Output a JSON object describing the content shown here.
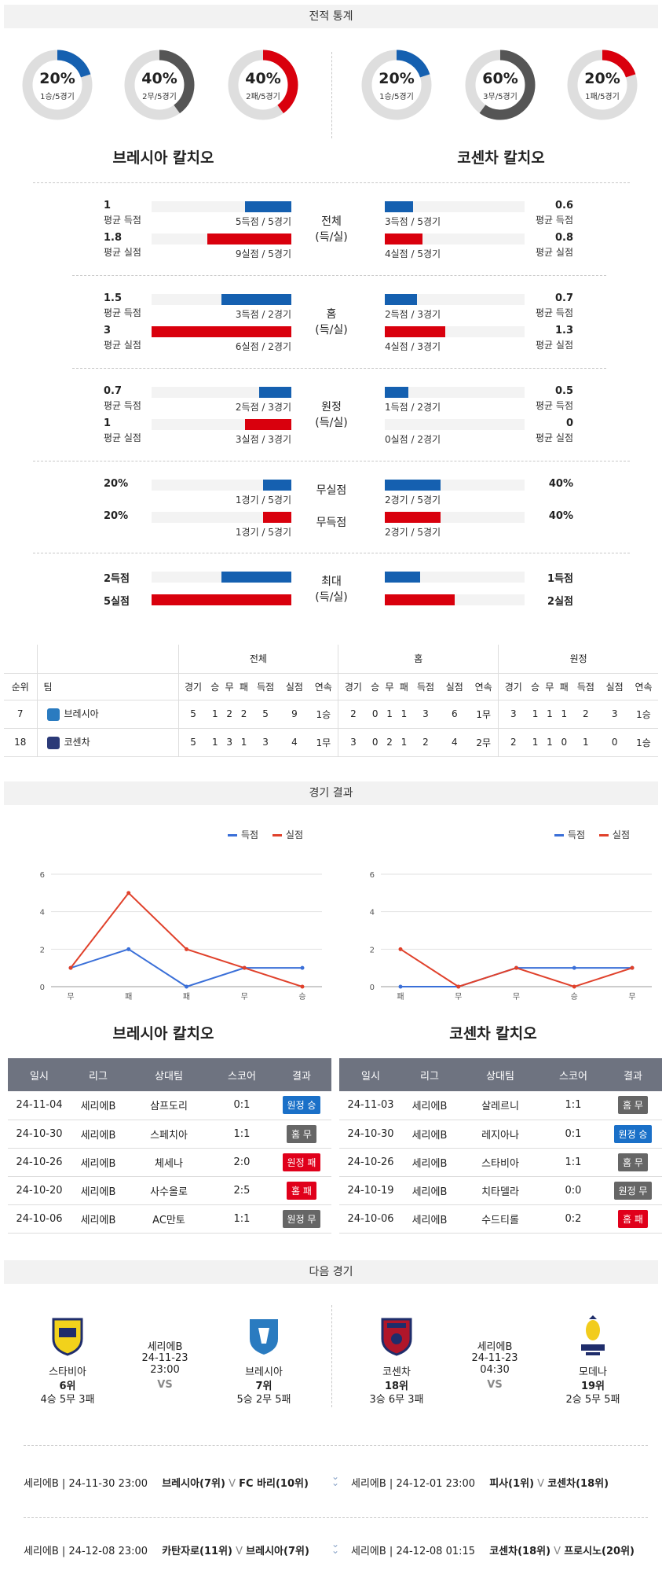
{
  "sections": {
    "stats": "전적 통계",
    "results": "경기 결과",
    "next": "다음 경기"
  },
  "donuts": [
    {
      "pct": "20%",
      "sub": "1승/5경기",
      "value": 0.2,
      "color": "#1560b0"
    },
    {
      "pct": "40%",
      "sub": "2무/5경기",
      "value": 0.4,
      "color": "#555555"
    },
    {
      "pct": "40%",
      "sub": "2패/5경기",
      "value": 0.4,
      "color": "#d9000d"
    },
    {
      "pct": "20%",
      "sub": "1승/5경기",
      "value": 0.2,
      "color": "#1560b0"
    },
    {
      "pct": "60%",
      "sub": "3무/5경기",
      "value": 0.6,
      "color": "#555555"
    },
    {
      "pct": "20%",
      "sub": "1패/5경기",
      "value": 0.2,
      "color": "#d9000d"
    }
  ],
  "teams": {
    "home": "브레시아 칼치오",
    "away": "코센차 칼치오"
  },
  "compare": {
    "total": {
      "label1": "전체",
      "label2": "(득/실)",
      "home_for": {
        "v": "1",
        "s": "평균 득점",
        "cap": "5득점 / 5경기",
        "frac": 0.33
      },
      "home_against": {
        "v": "1.8",
        "s": "평균 실점",
        "cap": "9실점 / 5경기",
        "frac": 0.6
      },
      "away_for": {
        "v": "0.6",
        "s": "평균 득점",
        "cap": "3득점 / 5경기",
        "frac": 0.2
      },
      "away_against": {
        "v": "0.8",
        "s": "평균 실점",
        "cap": "4실점 / 5경기",
        "frac": 0.27
      }
    },
    "home": {
      "label1": "홈",
      "label2": "(득/실)",
      "home_for": {
        "v": "1.5",
        "s": "평균 득점",
        "cap": "3득점 / 2경기",
        "frac": 0.5
      },
      "home_against": {
        "v": "3",
        "s": "평균 실점",
        "cap": "6실점 / 2경기",
        "frac": 1.0
      },
      "away_for": {
        "v": "0.7",
        "s": "평균 득점",
        "cap": "2득점 / 3경기",
        "frac": 0.23
      },
      "away_against": {
        "v": "1.3",
        "s": "평균 실점",
        "cap": "4실점 / 3경기",
        "frac": 0.43
      }
    },
    "away": {
      "label1": "원정",
      "label2": "(득/실)",
      "home_for": {
        "v": "0.7",
        "s": "평균 득점",
        "cap": "2득점 / 3경기",
        "frac": 0.23
      },
      "home_against": {
        "v": "1",
        "s": "평균 실점",
        "cap": "3실점 / 3경기",
        "frac": 0.33
      },
      "away_for": {
        "v": "0.5",
        "s": "평균 득점",
        "cap": "1득점 / 2경기",
        "frac": 0.17
      },
      "away_against": {
        "v": "0",
        "s": "평균 실점",
        "cap": "0실점 / 2경기",
        "frac": 0
      }
    },
    "clean": {
      "label_cs": "무실점",
      "label_fs": "무득점",
      "home_cs": {
        "v": "20%",
        "cap": "1경기 / 5경기",
        "frac": 0.2
      },
      "home_fs": {
        "v": "20%",
        "cap": "1경기 / 5경기",
        "frac": 0.2
      },
      "away_cs": {
        "v": "40%",
        "cap": "2경기 / 5경기",
        "frac": 0.4
      },
      "away_fs": {
        "v": "40%",
        "cap": "2경기 / 5경기",
        "frac": 0.4
      }
    },
    "max": {
      "label1": "최대",
      "label2": "(득/실)",
      "home_for": {
        "v": "2득점",
        "frac": 0.5
      },
      "home_against": {
        "v": "5실점",
        "frac": 1.0
      },
      "away_for": {
        "v": "1득점",
        "frac": 0.25
      },
      "away_against": {
        "v": "2실점",
        "frac": 0.5
      }
    }
  },
  "standings": {
    "groups": [
      "전체",
      "홈",
      "원정"
    ],
    "col_rank": "순위",
    "col_team": "팀",
    "cols": [
      "경기",
      "승",
      "무",
      "패",
      "득점",
      "실점",
      "연속"
    ],
    "rows": [
      {
        "rank": "7",
        "team": "브레시아",
        "crest": "#2a7bc0",
        "total": [
          "5",
          "1",
          "2",
          "2",
          "5",
          "9",
          "1승"
        ],
        "home": [
          "2",
          "0",
          "1",
          "1",
          "3",
          "6",
          "1무"
        ],
        "away": [
          "3",
          "1",
          "1",
          "1",
          "2",
          "3",
          "1승"
        ]
      },
      {
        "rank": "18",
        "team": "코센차",
        "crest": "#2b3a78",
        "total": [
          "5",
          "1",
          "3",
          "1",
          "3",
          "4",
          "1무"
        ],
        "home": [
          "3",
          "0",
          "2",
          "1",
          "2",
          "4",
          "2무"
        ],
        "away": [
          "2",
          "1",
          "1",
          "0",
          "1",
          "0",
          "1승"
        ]
      }
    ]
  },
  "chart_data": [
    {
      "type": "line",
      "categories": [
        "무",
        "패",
        "패",
        "무",
        "승"
      ],
      "series": [
        {
          "name": "득점",
          "values": [
            1,
            2,
            0,
            1,
            1
          ],
          "color": "#3a6fd8"
        },
        {
          "name": "실점",
          "values": [
            1,
            5,
            2,
            1,
            0
          ],
          "color": "#e0412b"
        }
      ],
      "yticks": [
        "0",
        "2",
        "4",
        "6"
      ],
      "ylim": [
        0,
        6
      ],
      "legend": "top-right"
    },
    {
      "type": "line",
      "categories": [
        "패",
        "무",
        "무",
        "승",
        "무"
      ],
      "series": [
        {
          "name": "득점",
          "values": [
            0,
            0,
            1,
            1,
            1
          ],
          "color": "#3a6fd8"
        },
        {
          "name": "실점",
          "values": [
            2,
            0,
            1,
            0,
            1
          ],
          "color": "#e0412b"
        }
      ],
      "yticks": [
        "0",
        "2",
        "4",
        "6"
      ],
      "ylim": [
        0,
        6
      ],
      "legend": "top-right"
    }
  ],
  "results": {
    "headers": [
      "일시",
      "리그",
      "상대팀",
      "스코어",
      "결과"
    ],
    "home": [
      {
        "date": "24-11-04",
        "league": "세리에B",
        "opp": "삼프도리",
        "score": "0:1",
        "result": "원정 승",
        "color": "#1a70c8"
      },
      {
        "date": "24-10-30",
        "league": "세리에B",
        "opp": "스페치아",
        "score": "1:1",
        "result": "홈 무",
        "color": "#666666"
      },
      {
        "date": "24-10-26",
        "league": "세리에B",
        "opp": "체세나",
        "score": "2:0",
        "result": "원정 패",
        "color": "#e0001b"
      },
      {
        "date": "24-10-20",
        "league": "세리에B",
        "opp": "사수올로",
        "score": "2:5",
        "result": "홈 패",
        "color": "#e0001b"
      },
      {
        "date": "24-10-06",
        "league": "세리에B",
        "opp": "AC만토",
        "score": "1:1",
        "result": "원정 무",
        "color": "#666666"
      }
    ],
    "away": [
      {
        "date": "24-11-03",
        "league": "세리에B",
        "opp": "살레르니",
        "score": "1:1",
        "result": "홈 무",
        "color": "#666666"
      },
      {
        "date": "24-10-30",
        "league": "세리에B",
        "opp": "레지아나",
        "score": "0:1",
        "result": "원정 승",
        "color": "#1a70c8"
      },
      {
        "date": "24-10-26",
        "league": "세리에B",
        "opp": "스타비아",
        "score": "1:1",
        "result": "홈 무",
        "color": "#666666"
      },
      {
        "date": "24-10-19",
        "league": "세리에B",
        "opp": "치타델라",
        "score": "0:0",
        "result": "원정 무",
        "color": "#666666"
      },
      {
        "date": "24-10-06",
        "league": "세리에B",
        "opp": "수드티롤",
        "score": "0:2",
        "result": "홈 패",
        "color": "#e0001b"
      }
    ]
  },
  "next": {
    "left": {
      "t1": {
        "name": "스타비아",
        "rank": "6위",
        "rec": "4승 5무 3패"
      },
      "league": "세리에B",
      "time": "24-11-23 23:00",
      "vs": "VS",
      "t2": {
        "name": "브레시아",
        "rank": "7위",
        "rec": "5승 2무 5패"
      }
    },
    "right": {
      "t1": {
        "name": "코센차",
        "rank": "18위",
        "rec": "3승 6무 3패"
      },
      "league": "세리에B",
      "time": "24-11-23 04:30",
      "vs": "VS",
      "t2": {
        "name": "모데나",
        "rank": "19위",
        "rec": "2승 5무 5패"
      }
    }
  },
  "future": [
    {
      "meta": "세리에B | 24-11-30 23:00",
      "home": "브레시아(7위)",
      "v": "V",
      "away": "FC 바리(10위)"
    },
    {
      "meta": "세리에B | 24-12-01 23:00",
      "home": "피사(1위)",
      "v": "V",
      "away": "코센차(18위)"
    },
    {
      "meta": "세리에B | 24-12-08 23:00",
      "home": "카탄자로(11위)",
      "v": "V",
      "away": "브레시아(7위)"
    },
    {
      "meta": "세리에B | 24-12-08 01:15",
      "home": "코센차(18위)",
      "v": "V",
      "away": "프로시노(20위)"
    }
  ]
}
